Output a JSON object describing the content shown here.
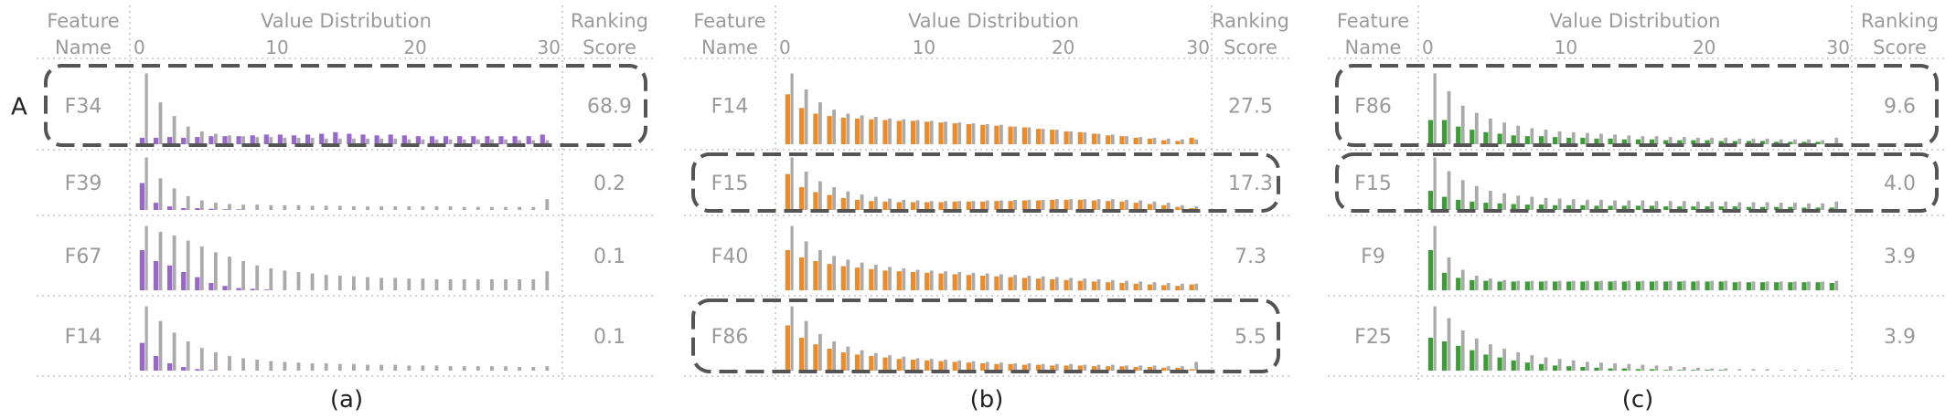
{
  "chart_data": [
    {
      "type": "bar",
      "caption": "(a)",
      "header": {
        "feature": [
          "Feature",
          "Name"
        ],
        "distribution": "Value Distribution",
        "score": [
          "Ranking",
          "Score"
        ]
      },
      "x_ticks": [
        "0",
        "10",
        "20",
        "30"
      ],
      "x_tick_values": [
        0,
        10,
        20,
        30
      ],
      "xlim": [
        0,
        30
      ],
      "bins": 30,
      "highlight_color": "#9966cc",
      "base_color": "#aaaaaa",
      "rows": [
        {
          "name": "F34",
          "score": "68.9",
          "boxed": true,
          "marker": "A",
          "gray": [
            88,
            52,
            35,
            22,
            16,
            13,
            11,
            10,
            9,
            9,
            8,
            8,
            8,
            7,
            7,
            7,
            7,
            7,
            7,
            6,
            6,
            6,
            6,
            6,
            6,
            6,
            6,
            5,
            5,
            5
          ],
          "color": [
            8,
            8,
            9,
            8,
            9,
            10,
            10,
            10,
            11,
            12,
            12,
            11,
            12,
            13,
            15,
            13,
            12,
            11,
            12,
            11,
            10,
            10,
            10,
            10,
            10,
            10,
            10,
            10,
            10,
            12
          ]
        },
        {
          "name": "F39",
          "score": "0.2",
          "boxed": false,
          "gray": [
            88,
            53,
            36,
            23,
            16,
            12,
            10,
            9,
            9,
            8,
            8,
            8,
            7,
            7,
            7,
            6,
            6,
            6,
            6,
            6,
            6,
            6,
            6,
            5,
            5,
            5,
            5,
            5,
            5,
            18
          ],
          "color": [
            45,
            12,
            6,
            3,
            3,
            2,
            1,
            1,
            0,
            0,
            0,
            0,
            0,
            0,
            0,
            0,
            0,
            0,
            0,
            0,
            0,
            0,
            0,
            0,
            0,
            0,
            0,
            0,
            0,
            0
          ]
        },
        {
          "name": "F67",
          "score": "0.1",
          "boxed": false,
          "gray": [
            88,
            80,
            75,
            68,
            60,
            52,
            46,
            40,
            34,
            30,
            27,
            25,
            23,
            21,
            20,
            19,
            18,
            17,
            17,
            16,
            16,
            15,
            15,
            15,
            15,
            15,
            15,
            15,
            15,
            26
          ],
          "color": [
            55,
            40,
            34,
            25,
            18,
            10,
            6,
            3,
            2,
            1,
            0,
            0,
            0,
            0,
            0,
            0,
            0,
            0,
            0,
            0,
            0,
            0,
            0,
            0,
            0,
            0,
            0,
            0,
            0,
            0
          ]
        },
        {
          "name": "F14",
          "score": "0.1",
          "boxed": false,
          "gray": [
            88,
            68,
            52,
            40,
            31,
            25,
            20,
            17,
            15,
            13,
            12,
            11,
            10,
            10,
            9,
            9,
            8,
            8,
            8,
            7,
            7,
            7,
            6,
            6,
            6,
            6,
            6,
            5,
            5,
            6
          ],
          "color": [
            38,
            20,
            10,
            5,
            2,
            1,
            0,
            0,
            0,
            0,
            0,
            0,
            0,
            0,
            0,
            0,
            0,
            0,
            0,
            0,
            0,
            0,
            0,
            0,
            0,
            0,
            0,
            0,
            0,
            0
          ]
        }
      ]
    },
    {
      "type": "bar",
      "caption": "(b)",
      "header": {
        "feature": [
          "Feature",
          "Name"
        ],
        "distribution": "Value Distribution",
        "score": [
          "Ranking",
          "Score"
        ]
      },
      "x_ticks": [
        "0",
        "10",
        "20",
        "30"
      ],
      "x_tick_values": [
        0,
        10,
        20,
        30
      ],
      "xlim": [
        0,
        30
      ],
      "bins": 30,
      "highlight_color": "#f08a24",
      "base_color": "#aaaaaa",
      "rows": [
        {
          "name": "F14",
          "score": "27.5",
          "boxed": false,
          "gray": [
            88,
            68,
            52,
            43,
            38,
            36,
            34,
            32,
            31,
            30,
            29,
            28,
            27,
            26,
            25,
            24,
            22,
            21,
            19,
            18,
            16,
            15,
            13,
            12,
            10,
            9,
            8,
            7,
            6,
            6
          ],
          "color": [
            62,
            45,
            38,
            35,
            33,
            32,
            31,
            30,
            29,
            29,
            28,
            27,
            26,
            25,
            24,
            23,
            22,
            21,
            19,
            18,
            16,
            15,
            13,
            11,
            10,
            8,
            7,
            5,
            4,
            8
          ]
        },
        {
          "name": "F15",
          "score": "17.3",
          "boxed": true,
          "gray": [
            88,
            64,
            48,
            38,
            31,
            26,
            22,
            19,
            17,
            16,
            15,
            15,
            15,
            15,
            16,
            16,
            17,
            17,
            17,
            18,
            18,
            18,
            18,
            18,
            17,
            16,
            14,
            12,
            8,
            6
          ],
          "color": [
            60,
            38,
            30,
            25,
            20,
            17,
            15,
            14,
            13,
            13,
            13,
            13,
            14,
            14,
            14,
            15,
            15,
            16,
            16,
            17,
            17,
            17,
            16,
            15,
            14,
            12,
            10,
            8,
            5,
            3
          ]
        },
        {
          "name": "F40",
          "score": "7.3",
          "boxed": false,
          "gray": [
            88,
            67,
            55,
            47,
            42,
            38,
            35,
            32,
            30,
            28,
            27,
            26,
            25,
            24,
            23,
            22,
            21,
            20,
            19,
            18,
            17,
            16,
            15,
            14,
            13,
            12,
            11,
            10,
            9,
            9
          ],
          "color": [
            55,
            45,
            40,
            36,
            33,
            31,
            29,
            27,
            26,
            25,
            24,
            23,
            22,
            21,
            20,
            19,
            18,
            17,
            16,
            15,
            14,
            13,
            12,
            11,
            10,
            9,
            8,
            7,
            6,
            8
          ]
        },
        {
          "name": "F86",
          "score": "5.5",
          "boxed": true,
          "gray": [
            88,
            68,
            50,
            40,
            33,
            28,
            24,
            21,
            19,
            17,
            16,
            15,
            14,
            13,
            12,
            11,
            10,
            10,
            9,
            9,
            9,
            8,
            8,
            8,
            7,
            7,
            7,
            6,
            6,
            12
          ],
          "color": [
            62,
            45,
            36,
            30,
            25,
            22,
            20,
            18,
            16,
            15,
            14,
            13,
            12,
            11,
            10,
            9,
            9,
            8,
            8,
            7,
            7,
            7,
            6,
            6,
            6,
            5,
            5,
            4,
            4,
            2
          ]
        }
      ]
    },
    {
      "type": "bar",
      "caption": "(c)",
      "header": {
        "feature": [
          "Feature",
          "Name"
        ],
        "distribution": "Value Distribution",
        "score": [
          "Ranking",
          "Score"
        ]
      },
      "x_ticks": [
        "0",
        "10",
        "20",
        "30"
      ],
      "x_tick_values": [
        0,
        10,
        20,
        30
      ],
      "xlim": [
        0,
        30
      ],
      "bins": 30,
      "highlight_color": "#3a9e35",
      "base_color": "#aaaaaa",
      "rows": [
        {
          "name": "F86",
          "score": "9.6",
          "boxed": true,
          "gray": [
            88,
            66,
            48,
            39,
            32,
            27,
            23,
            20,
            18,
            16,
            15,
            14,
            13,
            12,
            11,
            10,
            10,
            9,
            9,
            8,
            8,
            8,
            7,
            7,
            7,
            6,
            6,
            6,
            5,
            8
          ],
          "color": [
            30,
            30,
            22,
            18,
            15,
            13,
            11,
            10,
            10,
            9,
            8,
            8,
            7,
            7,
            6,
            6,
            6,
            5,
            5,
            5,
            5,
            4,
            4,
            4,
            4,
            3,
            3,
            3,
            3,
            1
          ]
        },
        {
          "name": "F15",
          "score": "4.0",
          "boxed": true,
          "gray": [
            88,
            65,
            50,
            40,
            32,
            28,
            24,
            22,
            20,
            19,
            18,
            17,
            17,
            16,
            16,
            16,
            15,
            15,
            15,
            14,
            14,
            14,
            13,
            13,
            13,
            12,
            12,
            11,
            11,
            14
          ],
          "color": [
            32,
            22,
            17,
            14,
            12,
            11,
            10,
            9,
            9,
            8,
            8,
            8,
            7,
            7,
            7,
            7,
            7,
            6,
            6,
            6,
            6,
            6,
            6,
            5,
            5,
            5,
            5,
            4,
            4,
            4
          ]
        },
        {
          "name": "F9",
          "score": "3.9",
          "boxed": false,
          "gray": [
            88,
            45,
            28,
            20,
            16,
            14,
            13,
            13,
            13,
            13,
            13,
            13,
            13,
            13,
            13,
            13,
            13,
            13,
            13,
            13,
            13,
            13,
            12,
            12,
            12,
            12,
            12,
            12,
            12,
            13
          ],
          "color": [
            55,
            24,
            17,
            14,
            13,
            12,
            12,
            12,
            12,
            12,
            12,
            12,
            12,
            12,
            12,
            12,
            12,
            12,
            12,
            12,
            12,
            12,
            11,
            11,
            11,
            11,
            11,
            11,
            11,
            10
          ]
        },
        {
          "name": "F25",
          "score": "3.9",
          "boxed": false,
          "gray": [
            88,
            72,
            55,
            44,
            36,
            30,
            25,
            21,
            18,
            16,
            14,
            12,
            11,
            10,
            9,
            8,
            7,
            6,
            5,
            4,
            3,
            3,
            2,
            2,
            2,
            1,
            1,
            1,
            1,
            1
          ],
          "color": [
            45,
            40,
            34,
            28,
            22,
            18,
            14,
            11,
            9,
            7,
            6,
            5,
            4,
            3,
            3,
            2,
            2,
            1,
            1,
            1,
            1,
            1,
            0,
            0,
            0,
            0,
            0,
            0,
            0,
            0
          ]
        }
      ]
    }
  ]
}
